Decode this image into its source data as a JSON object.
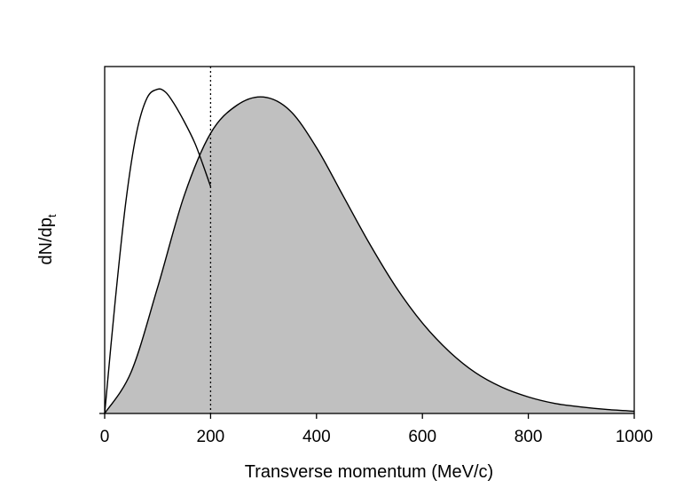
{
  "chart_data": {
    "type": "area",
    "title": "",
    "xlabel": "Transverse momentum (MeV/c)",
    "ylabel": {
      "main": "dN/dp",
      "subscript": "t"
    },
    "xlim": [
      0,
      1000
    ],
    "ylim": [
      0,
      1.07
    ],
    "x_ticks": [
      0,
      200,
      400,
      600,
      800,
      1000
    ],
    "x_tick_labels": [
      "0",
      "200",
      "400",
      "600",
      "800",
      "1000"
    ],
    "y_tick_labels": [],
    "grid": false,
    "legend": "none",
    "reference_line": {
      "x": 200,
      "style": "dotted"
    },
    "series": [
      {
        "style": "line",
        "x": [
          0,
          20,
          40,
          60,
          80,
          100,
          115,
          130,
          150,
          170,
          185,
          200
        ],
        "y": [
          0,
          0.349,
          0.653,
          0.864,
          0.973,
          1.0,
          0.991,
          0.958,
          0.901,
          0.835,
          0.77,
          0.7
        ]
      },
      {
        "style": "filled-area",
        "x": [
          0,
          50,
          100,
          150,
          200,
          250,
          300,
          350,
          400,
          450,
          500,
          550,
          600,
          650,
          700,
          750,
          800,
          850,
          900,
          950,
          1000
        ],
        "y": [
          0,
          0.128,
          0.389,
          0.671,
          0.864,
          0.951,
          0.976,
          0.934,
          0.82,
          0.672,
          0.524,
          0.39,
          0.279,
          0.192,
          0.126,
          0.081,
          0.051,
          0.031,
          0.02,
          0.012,
          0.007
        ]
      }
    ],
    "colors": {
      "fill": "#c0c0c0",
      "line": "#000000",
      "background": "#ffffff"
    }
  }
}
